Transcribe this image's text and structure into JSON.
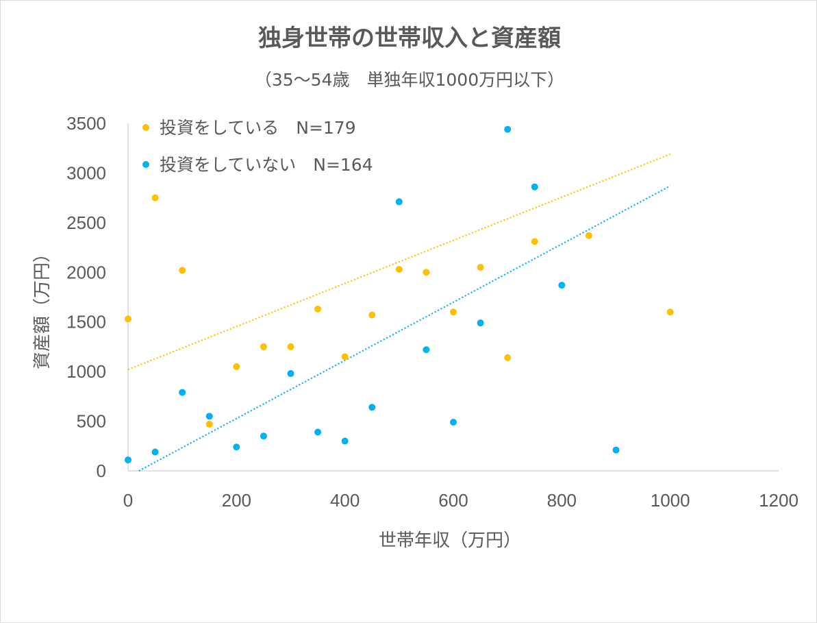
{
  "chart_data": {
    "type": "scatter",
    "title": "独身世帯の世帯収入と資産額",
    "subtitle": "（35～54歳　単独年収1000万円以下）",
    "xlabel": "世帯年収（万円）",
    "ylabel": "資産額（万円）",
    "xlim": [
      0,
      1200
    ],
    "ylim": [
      0,
      3500
    ],
    "xticks": [
      0,
      200,
      400,
      600,
      800,
      1000,
      1200
    ],
    "yticks": [
      0,
      500,
      1000,
      1500,
      2000,
      2500,
      3000,
      3500
    ],
    "legend_position": "top-left",
    "series": [
      {
        "name": "投資をしている　N=179",
        "color": "#FFC000",
        "points": [
          [
            0,
            1530
          ],
          [
            50,
            2750
          ],
          [
            100,
            2020
          ],
          [
            150,
            470
          ],
          [
            200,
            1050
          ],
          [
            250,
            1250
          ],
          [
            300,
            1250
          ],
          [
            350,
            1630
          ],
          [
            400,
            1150
          ],
          [
            450,
            1570
          ],
          [
            500,
            2030
          ],
          [
            550,
            2000
          ],
          [
            600,
            1600
          ],
          [
            650,
            2050
          ],
          [
            700,
            1140
          ],
          [
            750,
            2310
          ],
          [
            850,
            2370
          ],
          [
            1000,
            1600
          ]
        ],
        "trendline": {
          "x": [
            0,
            1000
          ],
          "y": [
            1020,
            3190
          ]
        }
      },
      {
        "name": "投資をしていない　N=164",
        "color": "#00B0F0",
        "points": [
          [
            0,
            110
          ],
          [
            50,
            190
          ],
          [
            100,
            790
          ],
          [
            150,
            550
          ],
          [
            200,
            240
          ],
          [
            250,
            350
          ],
          [
            300,
            980
          ],
          [
            350,
            390
          ],
          [
            400,
            300
          ],
          [
            450,
            640
          ],
          [
            500,
            2710
          ],
          [
            550,
            1220
          ],
          [
            600,
            490
          ],
          [
            650,
            1490
          ],
          [
            700,
            3440
          ],
          [
            750,
            2860
          ],
          [
            800,
            1870
          ],
          [
            900,
            210
          ]
        ],
        "trendline": {
          "x": [
            20,
            1000
          ],
          "y": [
            0,
            2870
          ]
        }
      }
    ]
  }
}
